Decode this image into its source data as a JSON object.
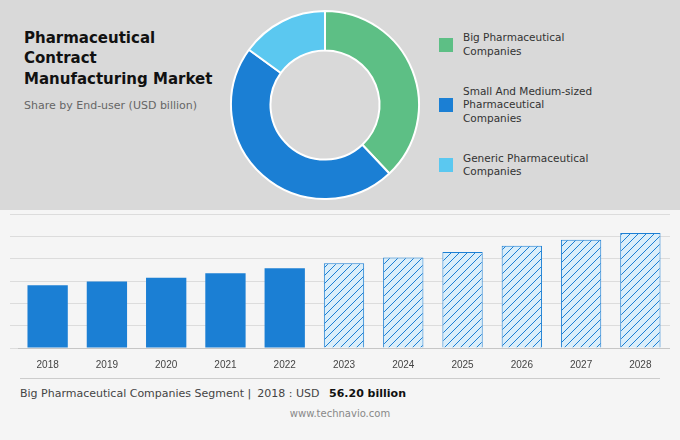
{
  "chart_data": [
    {
      "type": "doughnut",
      "title": "Pharmaceutical Contract\nManufacturing Market",
      "subtitle": "Share by End-user (USD billion)",
      "categories": [
        "Big Pharmaceutical\nCompanies",
        "Small And Medium-sized\nPharmaceutical\nCompanies",
        "Generic Pharmaceutical\nCompanies"
      ],
      "values": [
        38,
        47,
        15
      ],
      "colors": [
        "#5dbf85",
        "#1b7fd4",
        "#5bc8f0"
      ],
      "legend": "right"
    },
    {
      "type": "bar",
      "categories": [
        "2018",
        "2019",
        "2020",
        "2021",
        "2022",
        "2023",
        "2024",
        "2025",
        "2026",
        "2027",
        "2028"
      ],
      "values": [
        56.2,
        59.5,
        63.0,
        67.0,
        71.5,
        76.0,
        81.0,
        86.0,
        91.5,
        97.0,
        103.0
      ],
      "colors": [
        "#1b7fd4",
        "#1b7fd4",
        "#1b7fd4",
        "#1b7fd4",
        "#1b7fd4",
        "#daeefa",
        "#daeefa",
        "#daeefa",
        "#daeefa",
        "#daeefa",
        "#daeefa"
      ],
      "ylim": [
        0,
        120
      ],
      "yticks": [
        0,
        20,
        40,
        60,
        80,
        100,
        120
      ],
      "grid": true,
      "tick_labels": "x",
      "annotations": [
        "Big Pharmaceutical Companies Segment |",
        "2018 : USD ",
        "56.20 billion",
        "www.technavio.com"
      ]
    }
  ]
}
